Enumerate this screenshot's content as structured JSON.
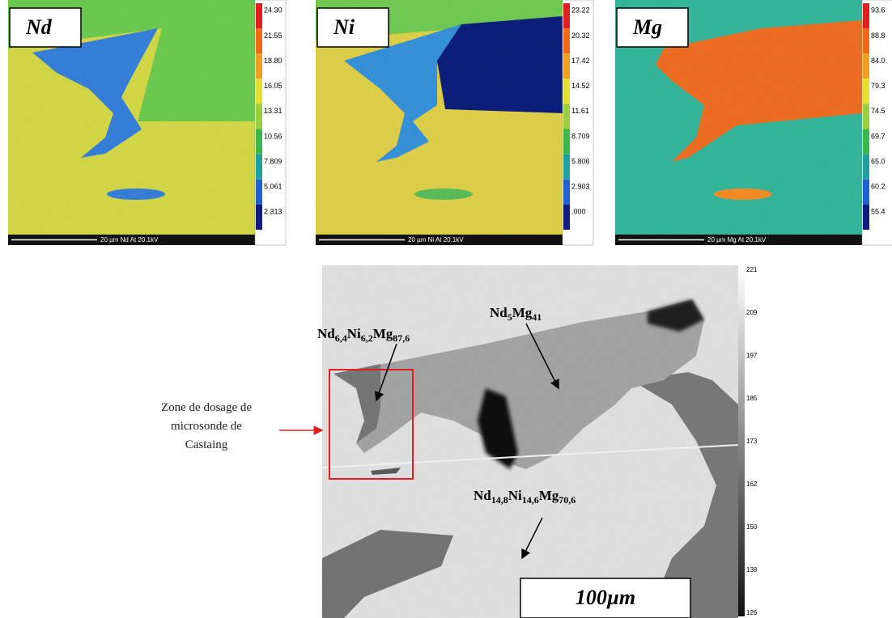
{
  "panels": [
    {
      "label": "Nd",
      "scale": [
        "24.30",
        "21.55",
        "18.80",
        "16.05",
        "13.31",
        "10.56",
        "7.809",
        "5.061",
        "2.313"
      ],
      "caption": "20 µm  Nd At  20.1kV"
    },
    {
      "label": "Ni",
      "scale": [
        "23.22",
        "20.32",
        "17.42",
        "14.52",
        "11.61",
        "8.709",
        "5.806",
        "2.903",
        ".000"
      ],
      "caption": "20 µm  Ni At  20.1kV"
    },
    {
      "label": "Mg",
      "scale": [
        "93.6",
        "88.8",
        "84.0",
        "79.3",
        "74.5",
        "69.7",
        "65.0",
        "60.2",
        "55.4"
      ],
      "caption": "20 µm  Mg At  20.1kV"
    }
  ],
  "micrograph": {
    "phases": [
      {
        "formula": [
          [
            "Nd",
            "6,4"
          ],
          [
            "Ni",
            "6,2"
          ],
          [
            "Mg",
            "87,6"
          ]
        ]
      },
      {
        "formula": [
          [
            "Nd",
            "5"
          ],
          [
            "Mg",
            "41"
          ]
        ]
      },
      {
        "formula": [
          [
            "Nd",
            "14,8"
          ],
          [
            "Ni",
            "14,6"
          ],
          [
            "Mg",
            "70,6"
          ]
        ]
      }
    ],
    "zone_note": [
      "Zone de dosage de",
      "microsonde de",
      "Castaing"
    ],
    "scale_bar": "100µm",
    "gray_scale": [
      "221",
      "209",
      "197",
      "185",
      "173",
      "162",
      "150",
      "138",
      "126"
    ]
  }
}
